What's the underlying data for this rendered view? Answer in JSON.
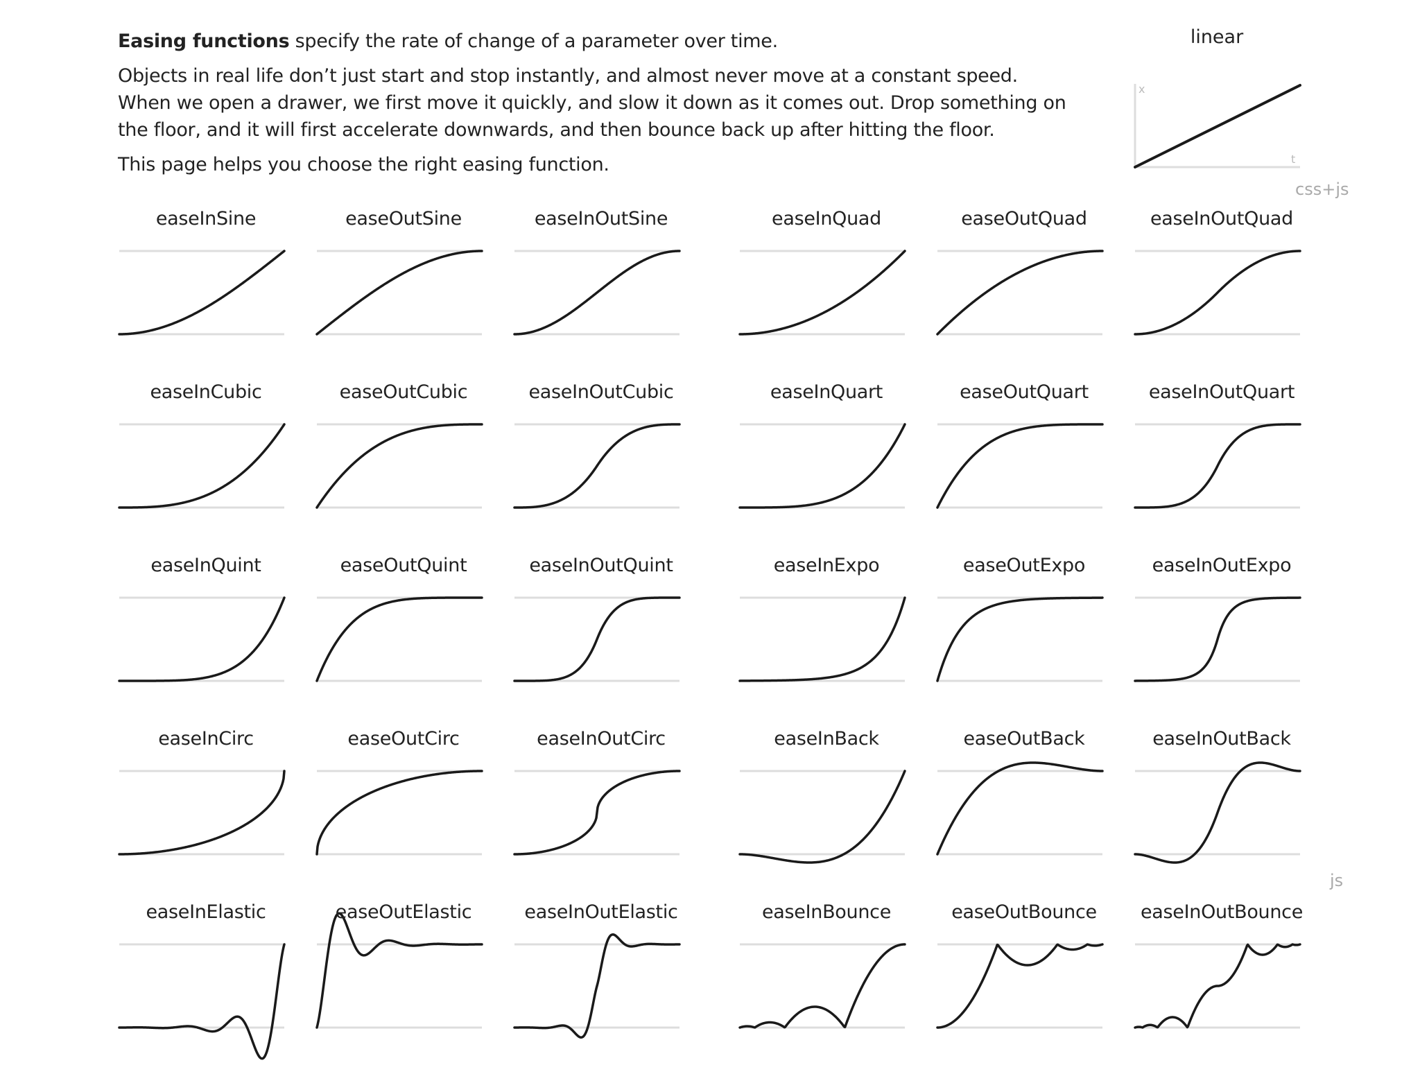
{
  "intro": {
    "lead_bold": "Easing functions",
    "lead_rest": " specify the rate of change of a parameter over time.",
    "body": "Objects in real life don’t just start and stop instantly, and almost never move at a constant speed. When we open a drawer, we first move it quickly, and slow it down as it comes out. Drop something on the floor, and it will first accelerate downwards, and then bounce back up after hitting the floor.",
    "closing": "This page helps you choose the right easing function."
  },
  "linear": {
    "title": "linear",
    "axis_x": "x",
    "axis_t": "t"
  },
  "sections": {
    "css_js": "css+js",
    "js": "js"
  },
  "easings": [
    {
      "name": "easeInSine"
    },
    {
      "name": "easeOutSine"
    },
    {
      "name": "easeInOutSine"
    },
    {
      "name": "easeInQuad"
    },
    {
      "name": "easeOutQuad"
    },
    {
      "name": "easeInOutQuad"
    },
    {
      "name": "easeInCubic"
    },
    {
      "name": "easeOutCubic"
    },
    {
      "name": "easeInOutCubic"
    },
    {
      "name": "easeInQuart"
    },
    {
      "name": "easeOutQuart"
    },
    {
      "name": "easeInOutQuart"
    },
    {
      "name": "easeInQuint"
    },
    {
      "name": "easeOutQuint"
    },
    {
      "name": "easeInOutQuint"
    },
    {
      "name": "easeInExpo"
    },
    {
      "name": "easeOutExpo"
    },
    {
      "name": "easeInOutExpo"
    },
    {
      "name": "easeInCirc"
    },
    {
      "name": "easeOutCirc"
    },
    {
      "name": "easeInOutCirc"
    },
    {
      "name": "easeInBack"
    },
    {
      "name": "easeOutBack"
    },
    {
      "name": "easeInOutBack"
    },
    {
      "name": "easeInElastic"
    },
    {
      "name": "easeOutElastic"
    },
    {
      "name": "easeInOutElastic"
    },
    {
      "name": "easeInBounce"
    },
    {
      "name": "easeOutBounce"
    },
    {
      "name": "easeInOutBounce"
    }
  ],
  "colors": {
    "text": "#222222",
    "curve": "#1a1a1a",
    "guide": "#dddddd",
    "muted": "#a9a9a9"
  }
}
